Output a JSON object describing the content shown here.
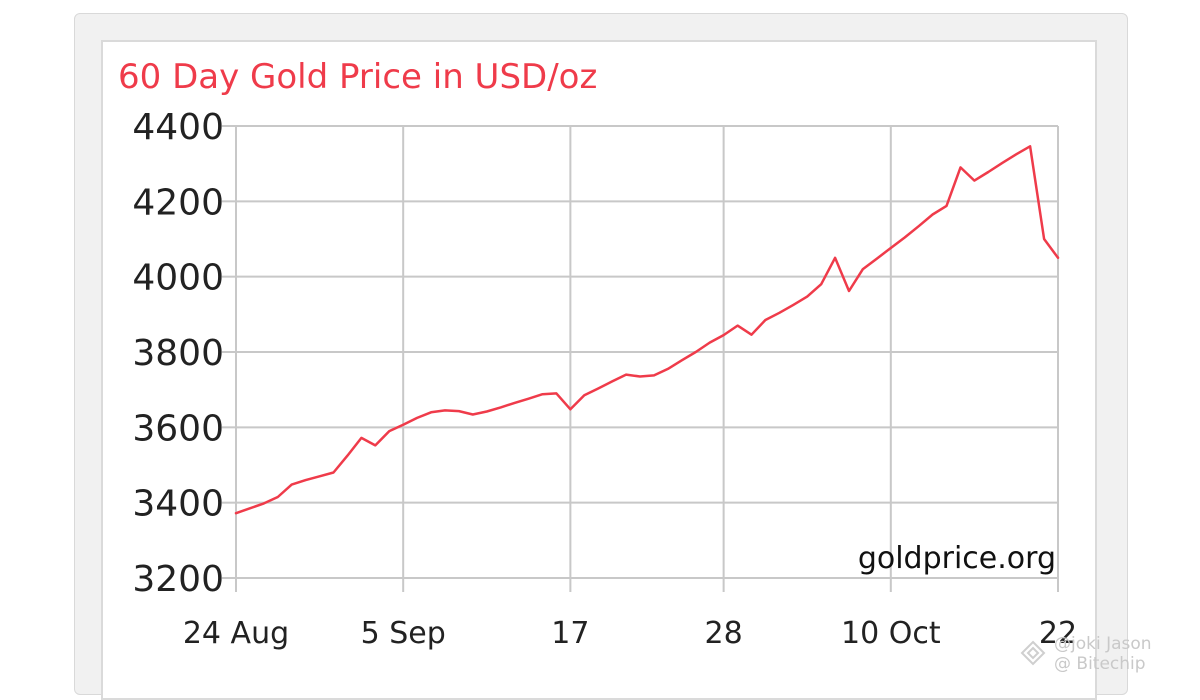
{
  "chart_data": {
    "type": "line",
    "title": "60 Day Gold Price in USD/oz",
    "source_label": "goldprice.org",
    "xlabel": "",
    "ylabel": "",
    "ylim": [
      3200,
      4400
    ],
    "yticks": [
      4400,
      4200,
      4000,
      3800,
      3600,
      3400,
      3200
    ],
    "xtick_labels": [
      "24 Aug",
      "5 Sep",
      "17",
      "28",
      "10 Oct",
      "22"
    ],
    "x_range_days": [
      0,
      59
    ],
    "xtick_days": [
      0,
      12,
      24,
      35,
      47,
      59
    ],
    "grid": true,
    "colors": {
      "line": "#ef3b4a",
      "title": "#ef3b4a",
      "grid": "#c8c8c8",
      "axis_text": "#222222"
    },
    "series": [
      {
        "x_days": [
          0,
          1,
          2,
          3,
          4,
          5,
          6,
          7,
          8,
          9,
          10,
          11,
          12,
          13,
          14,
          15,
          16,
          17,
          18,
          19,
          20,
          21,
          22,
          23,
          24,
          25,
          26,
          27,
          28,
          29,
          30,
          31,
          32,
          33,
          34,
          35,
          36,
          37,
          38,
          39,
          40,
          41,
          42,
          43,
          44,
          45,
          46,
          47,
          48,
          49,
          50,
          51,
          52,
          53,
          54,
          55,
          56,
          57,
          58,
          59
        ],
        "values": [
          3372,
          3385,
          3398,
          3415,
          3448,
          3460,
          3470,
          3480,
          3525,
          3572,
          3552,
          3590,
          3607,
          3625,
          3640,
          3645,
          3643,
          3634,
          3642,
          3653,
          3665,
          3676,
          3688,
          3690,
          3648,
          3685,
          3703,
          3722,
          3740,
          3735,
          3738,
          3755,
          3778,
          3800,
          3825,
          3845,
          3870,
          3846,
          3885,
          3904,
          3925,
          3947,
          3980,
          4050,
          3962,
          4020,
          4048,
          4076,
          4104,
          4134,
          4165,
          4188,
          4290,
          4255,
          4278,
          4302,
          4325,
          4346,
          4100,
          4050
        ]
      }
    ]
  },
  "watermark": {
    "line1": "@joki Jason",
    "line2": "@ Bitechip"
  }
}
